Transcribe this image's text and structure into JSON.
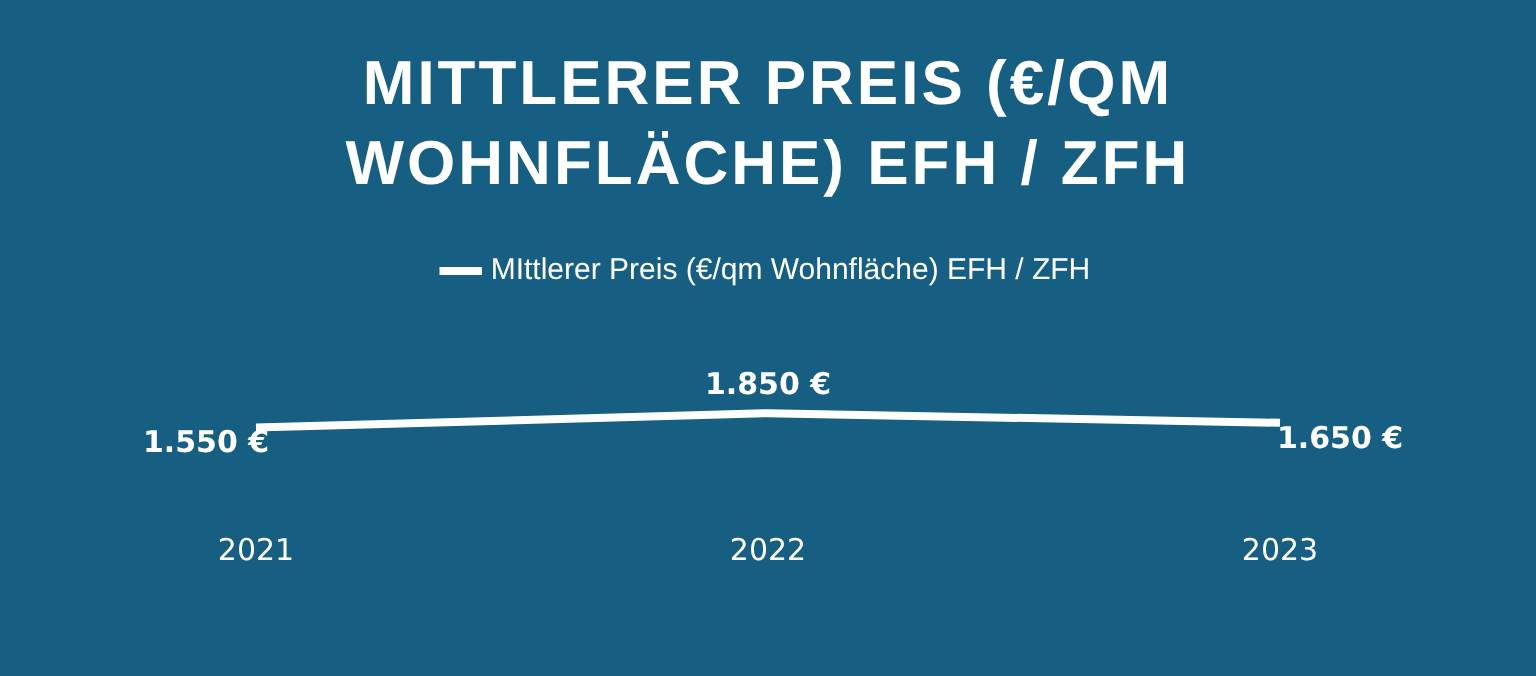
{
  "chart_data": {
    "type": "line",
    "title": "MITTLERER PREIS (€/QM WOHNFLÄCHE) EFH / ZFH",
    "categories": [
      "2021",
      "2022",
      "2023"
    ],
    "series": [
      {
        "name": "MIttlerer Preis (€/qm Wohnfläche) EFH / ZFH",
        "color": "#ffffff",
        "values": [
          1550,
          1850,
          1650
        ],
        "value_labels": [
          "1.550 €",
          "1.850 €",
          "1.650 €"
        ]
      }
    ],
    "tick_labels": "x",
    "grid": false,
    "legend": "top",
    "marker": "none",
    "line_style": "solid"
  }
}
